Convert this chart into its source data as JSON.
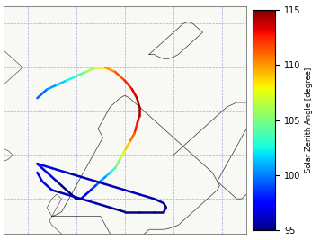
{
  "vmin": 95,
  "vmax": 115,
  "colorbar_ticks": [
    95,
    100,
    105,
    110,
    115
  ],
  "colorbar_label": "Solar Zenith Angle [degree]",
  "colormap": "jet",
  "background_color": "#f8f8f5",
  "coast_color": "#333333",
  "grid_color": "#8888cc",
  "lon_min": -15,
  "lon_max": 35,
  "lat_min": 56,
  "lat_max": 82,
  "grid_lons": [
    -20,
    -10,
    0,
    10,
    20,
    30,
    40
  ],
  "grid_lats": [
    55,
    60,
    65,
    70,
    75,
    80,
    85
  ],
  "tracks": [
    {
      "lons": [
        -8.0,
        -6.0,
        -4.0,
        -2.0,
        0.0,
        2.0,
        4.0,
        6.0,
        8.0,
        10.0,
        11.5,
        12.5,
        13.0,
        13.0,
        12.5,
        12.0,
        11.0,
        10.0
      ],
      "lats": [
        71.5,
        72.5,
        73.0,
        73.5,
        74.0,
        74.5,
        75.0,
        75.0,
        74.5,
        73.5,
        72.5,
        71.5,
        70.5,
        69.5,
        68.5,
        67.5,
        66.5,
        65.5
      ],
      "szas": [
        99,
        100,
        101,
        102,
        103,
        105,
        107,
        109,
        111,
        112,
        113,
        114,
        115,
        114,
        113,
        112,
        110,
        108
      ]
    },
    {
      "lons": [
        10.0,
        9.0,
        8.0,
        7.0,
        6.0,
        5.0,
        4.0,
        3.0,
        2.0,
        1.0,
        0.0,
        -1.0,
        -2.0,
        -3.0,
        -4.0,
        -5.0,
        -6.0,
        -7.0,
        -8.0
      ],
      "lats": [
        65.5,
        64.5,
        63.5,
        63.0,
        62.5,
        62.0,
        61.5,
        61.0,
        60.5,
        60.0,
        60.0,
        60.5,
        61.0,
        61.5,
        62.0,
        62.5,
        63.0,
        63.5,
        64.0
      ],
      "szas": [
        108,
        106,
        104,
        102,
        101,
        100,
        99,
        98,
        97,
        96,
        95,
        95,
        95,
        95,
        96,
        96,
        97,
        97,
        98
      ]
    },
    {
      "lons": [
        -8.0,
        -5.0,
        -2.0,
        1.0,
        4.0,
        7.0,
        10.0,
        13.0,
        16.0,
        18.0,
        18.5,
        18.0,
        16.0,
        13.0,
        10.0,
        7.0,
        4.0,
        1.0,
        -2.0,
        -5.0,
        -7.0,
        -8.0
      ],
      "lats": [
        64.0,
        63.5,
        63.0,
        62.5,
        62.0,
        61.5,
        61.0,
        60.5,
        60.0,
        59.5,
        59.0,
        58.5,
        58.5,
        58.5,
        58.5,
        59.0,
        59.5,
        60.0,
        60.5,
        61.0,
        62.0,
        63.0
      ],
      "szas": [
        98,
        97,
        96,
        96,
        96,
        96,
        96,
        96,
        96,
        95,
        95,
        95,
        95,
        95,
        95,
        95,
        96,
        96,
        96,
        96,
        97,
        97
      ]
    }
  ]
}
